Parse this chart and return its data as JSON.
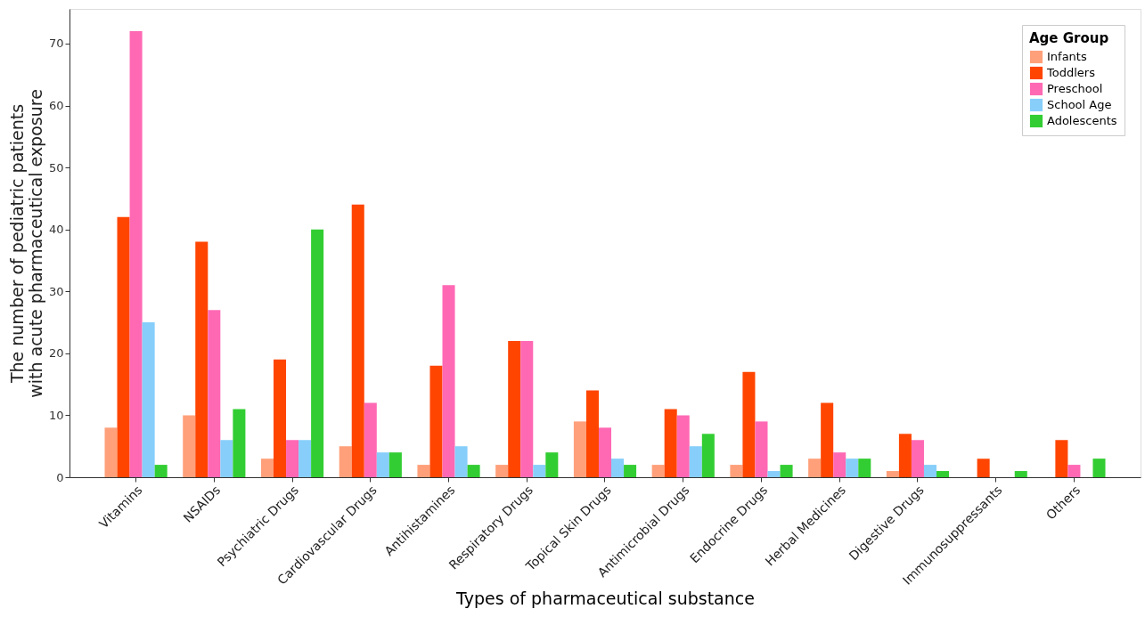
{
  "chart_data": {
    "type": "bar",
    "xlabel": "Types of pharmaceutical substance",
    "ylabel": "The number of pediatric patients\nwith acute pharmaceutical exposure",
    "legend_title": "Age Group",
    "categories": [
      "Vitamins",
      "NSAIDs",
      "Psychiatric Drugs",
      "Cardiovascular Drugs",
      "Antihistamines",
      "Respiratory Drugs",
      "Topical Skin Drugs",
      "Antimicrobial Drugs",
      "Endocrine Drugs",
      "Herbal Medicines",
      "Digestive Drugs",
      "Immunosuppressants",
      "Others"
    ],
    "series": [
      {
        "name": "Infants",
        "color": "#ffa07a",
        "values": [
          8,
          10,
          3,
          5,
          2,
          2,
          9,
          2,
          2,
          3,
          1,
          0,
          0
        ]
      },
      {
        "name": "Toddlers",
        "color": "#ff4500",
        "values": [
          42,
          38,
          19,
          44,
          18,
          22,
          14,
          11,
          17,
          12,
          7,
          3,
          6
        ]
      },
      {
        "name": "Preschool",
        "color": "#ff69b4",
        "values": [
          72,
          27,
          6,
          12,
          31,
          22,
          8,
          10,
          9,
          4,
          6,
          0,
          2
        ]
      },
      {
        "name": "School Age",
        "color": "#87cefa",
        "values": [
          25,
          6,
          6,
          4,
          5,
          2,
          3,
          5,
          1,
          3,
          2,
          0,
          0
        ]
      },
      {
        "name": "Adolescents",
        "color": "#32cd32",
        "values": [
          2,
          11,
          40,
          4,
          2,
          4,
          2,
          7,
          2,
          3,
          1,
          1,
          3
        ]
      }
    ],
    "ylim": [
      0,
      75.6
    ],
    "yticks": [
      0,
      10,
      20,
      30,
      40,
      50,
      60,
      70
    ],
    "grid": false,
    "legend": "top right"
  }
}
